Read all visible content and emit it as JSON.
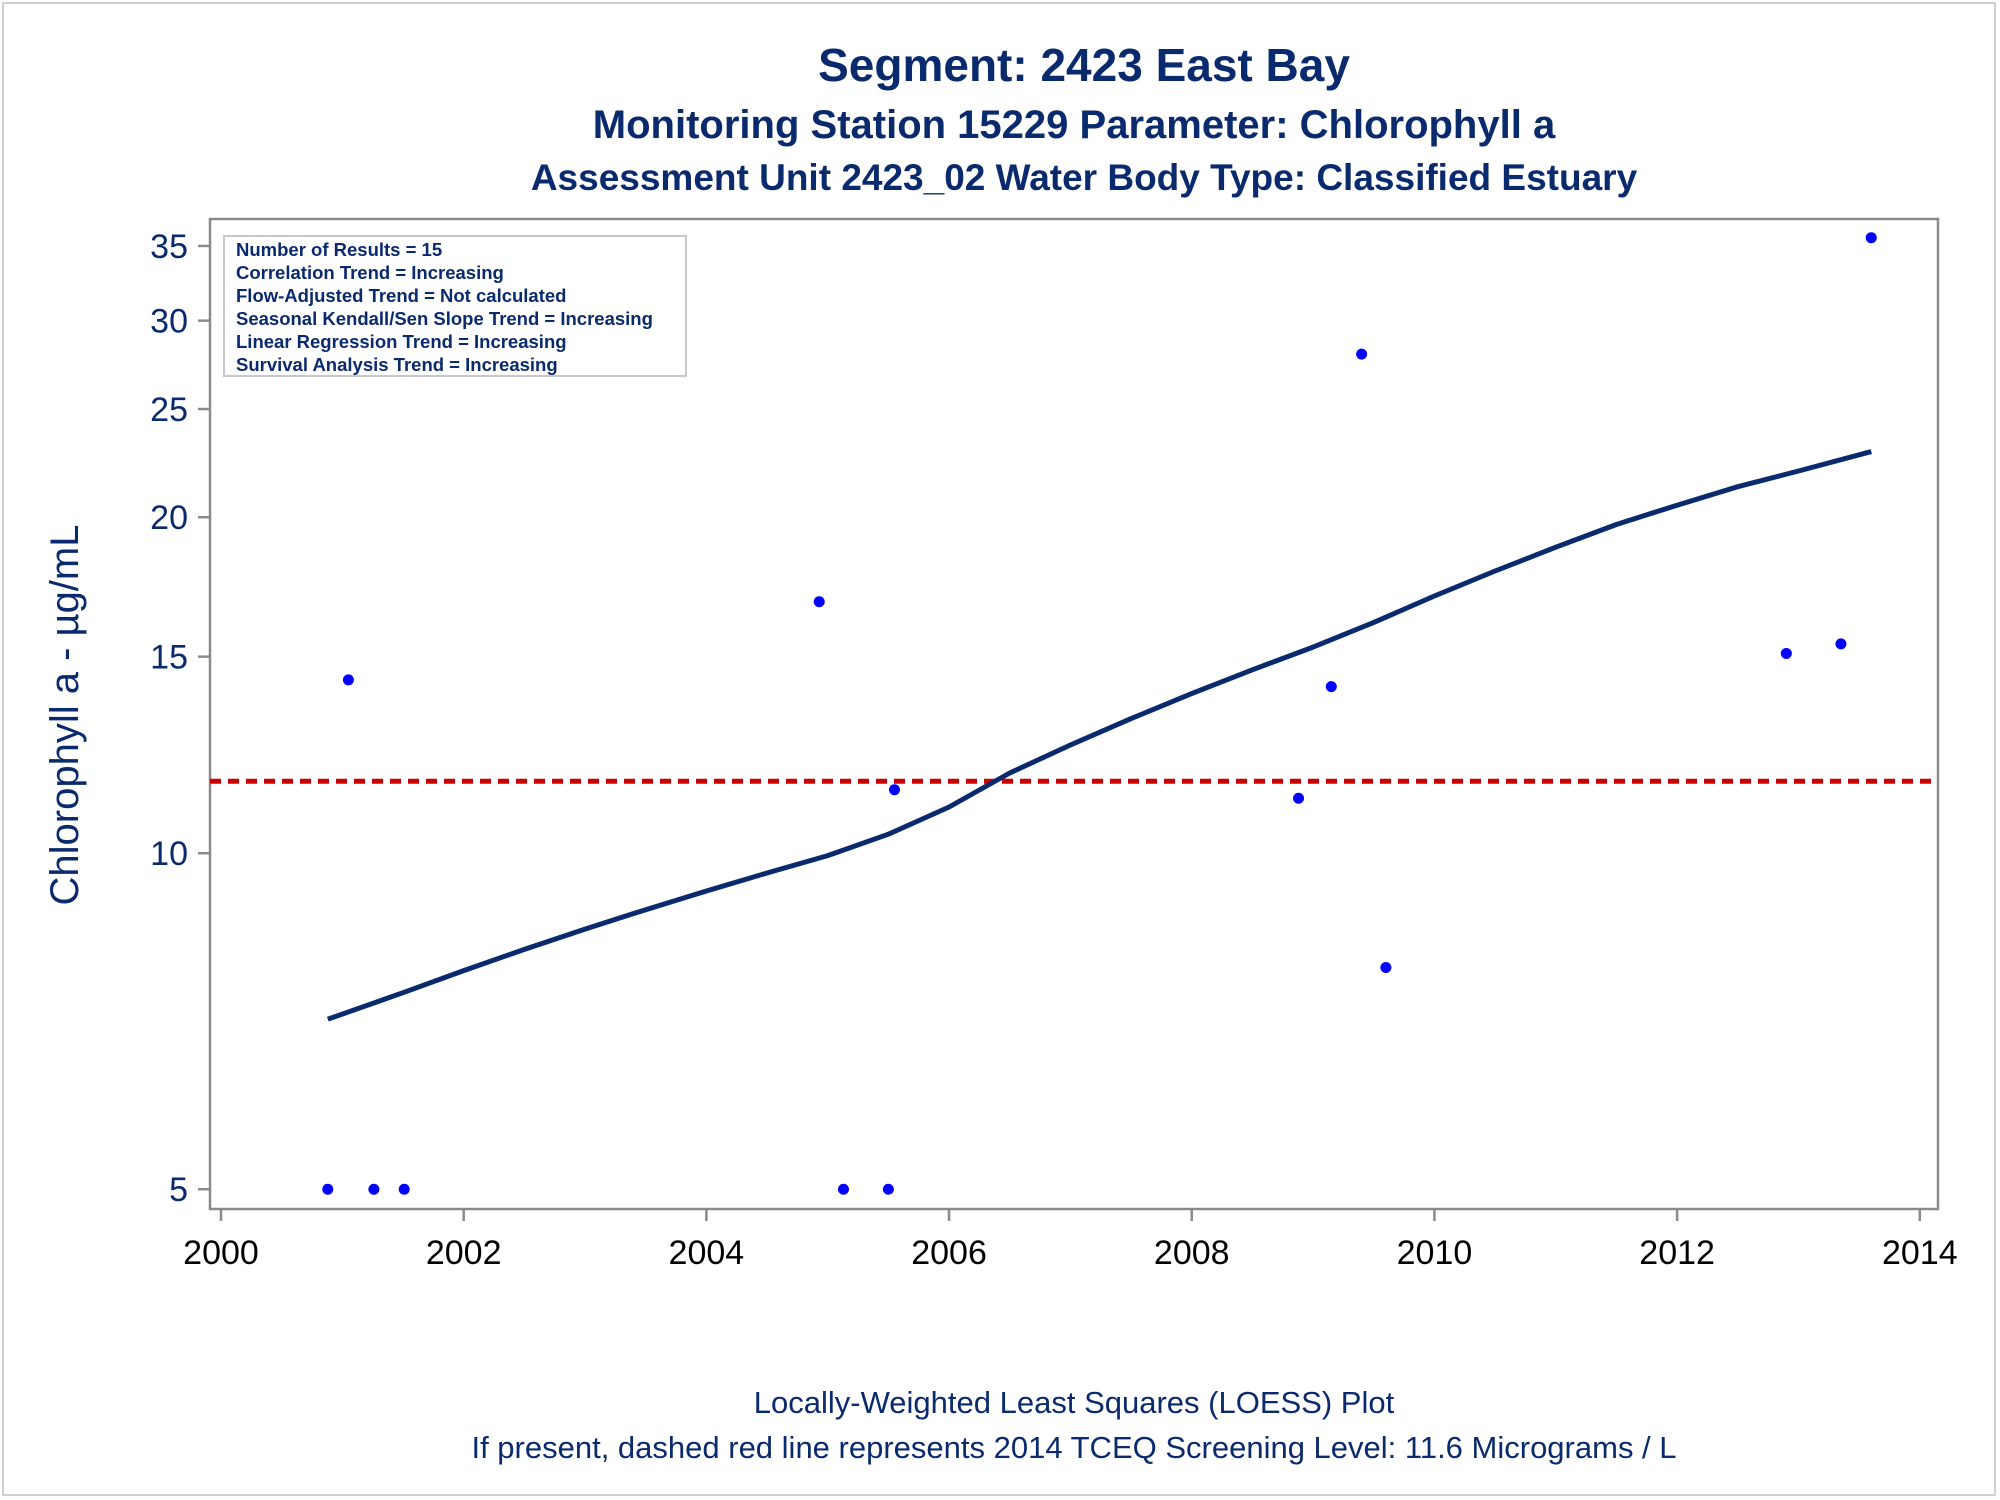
{
  "titles": {
    "line1": "Segment: 2423  East Bay",
    "line2": "Monitoring Station 15229 Parameter: Chlorophyll a",
    "line3": "Assessment Unit 2423_02   Water Body Type: Classified Estuary"
  },
  "footnotes": {
    "line1": "Locally-Weighted Least Squares (LOESS) Plot",
    "line2": "If present, dashed red line represents 2014 TCEQ Screening Level: 11.6 Micrograms / L"
  },
  "stats_box": [
    "Number of Results = 15",
    "Correlation Trend = Increasing",
    "Flow-Adjusted Trend = Not calculated",
    "Seasonal Kendall/Sen Slope Trend = Increasing",
    "Linear Regression Trend = Increasing",
    "Survival Analysis Trend = Increasing"
  ],
  "colors": {
    "title": "#0a2a6e",
    "points": "#0000ff",
    "loess": "#0a2a6e",
    "screening": "#cc0000",
    "axis": "#8a8a8a"
  },
  "chart_data": {
    "type": "scatter",
    "title": "Segment: 2423  East Bay",
    "xlabel": "",
    "ylabel": "Chlorophyll a -  µg/mL",
    "xlim": [
      2000,
      2014.15
    ],
    "ylim": [
      4.8,
      37
    ],
    "yscale": "log",
    "xticks": [
      2000,
      2002,
      2004,
      2006,
      2008,
      2010,
      2012,
      2014
    ],
    "yticks": [
      5,
      10,
      15,
      20,
      25,
      30,
      35
    ],
    "grid": false,
    "legend": "top-left",
    "series": [
      {
        "type": "scatter",
        "x": [
          2000.88,
          2001.05,
          2001.26,
          2001.51,
          2004.93,
          2005.13,
          2005.5,
          2005.55,
          2008.88,
          2009.15,
          2009.4,
          2009.6,
          2012.9,
          2013.35,
          2013.6
        ],
        "y": [
          5,
          14.3,
          5,
          5,
          16.8,
          5,
          5,
          11.4,
          11.2,
          14.1,
          28,
          7.9,
          15.1,
          15.4,
          35.6
        ]
      },
      {
        "type": "line",
        "x": [
          2000.88,
          2001.5,
          2002,
          2002.5,
          2003,
          2003.5,
          2004,
          2004.5,
          2005,
          2005.5,
          2006,
          2006.5,
          2007,
          2007.5,
          2008,
          2008.5,
          2009,
          2009.5,
          2010,
          2010.5,
          2011,
          2011.5,
          2012,
          2012.5,
          2013,
          2013.6
        ],
        "y": [
          7.1,
          7.5,
          7.85,
          8.2,
          8.55,
          8.9,
          9.25,
          9.6,
          9.95,
          10.4,
          11.0,
          11.8,
          12.5,
          13.2,
          13.9,
          14.6,
          15.3,
          16.1,
          17.0,
          17.9,
          18.8,
          19.7,
          20.5,
          21.3,
          22.0,
          22.9
        ]
      },
      {
        "type": "hline",
        "y": 11.6
      }
    ]
  }
}
